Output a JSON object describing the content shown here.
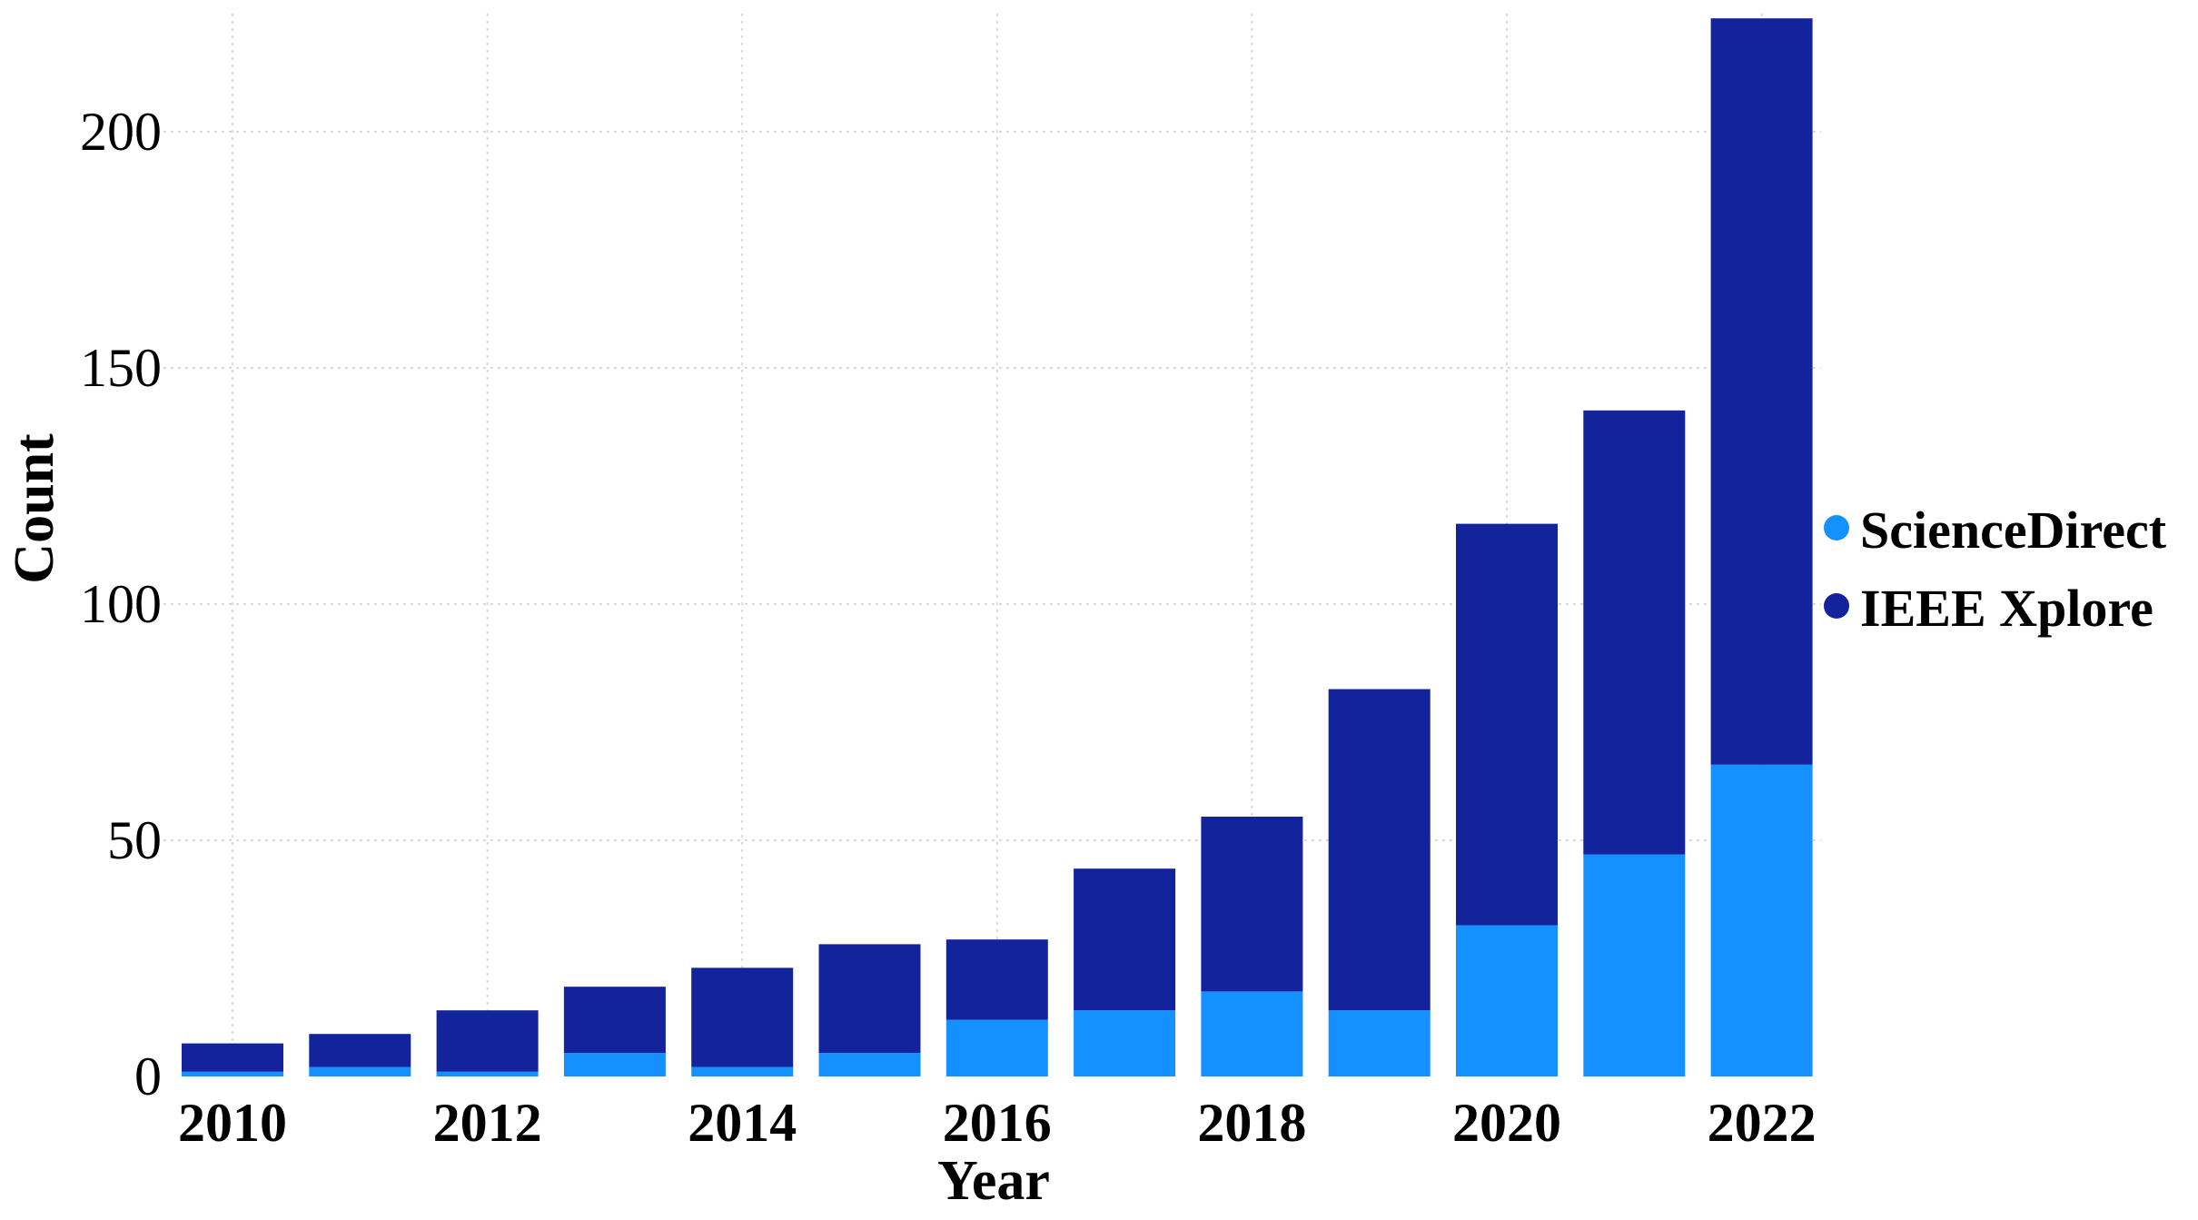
{
  "chart_data": {
    "type": "bar",
    "stacked": true,
    "title": "",
    "xlabel": "Year",
    "ylabel": "Count",
    "ylim": [
      0,
      225
    ],
    "yticks": [
      0,
      50,
      100,
      150,
      200
    ],
    "grid": true,
    "legend_position": "right",
    "categories": [
      "2010",
      "2011",
      "2012",
      "2013",
      "2014",
      "2015",
      "2016",
      "2017",
      "2018",
      "2019",
      "2020",
      "2021",
      "2022"
    ],
    "xtick_labels": [
      "2010",
      "2012",
      "2014",
      "2016",
      "2018",
      "2020",
      "2022"
    ],
    "series": [
      {
        "name": "ScienceDirect",
        "color": "#1591ff",
        "values": [
          1,
          2,
          1,
          5,
          2,
          5,
          12,
          14,
          18,
          14,
          32,
          47,
          66
        ]
      },
      {
        "name": "IEEE Xplore",
        "color": "#13239c",
        "values": [
          6,
          7,
          13,
          14,
          21,
          23,
          17,
          30,
          37,
          68,
          85,
          94,
          158
        ]
      }
    ],
    "legend_order": [
      "ScienceDirect",
      "IEEE Xplore"
    ]
  }
}
